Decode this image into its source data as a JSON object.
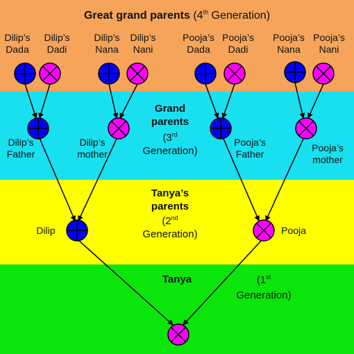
{
  "bands": {
    "gen4": {
      "title_bold": "Great grand parents",
      "open": "(4",
      "sup": "th",
      "rest": " Generation)",
      "color": "#f5a45a"
    },
    "gen3": {
      "line1": "Grand",
      "line2": "parents",
      "open": "(3",
      "sup": "rd",
      "line4": "Generation)",
      "color": "#18e0f0"
    },
    "gen2": {
      "line1": "Tanya’s",
      "line2": "parents",
      "open": "(2",
      "sup": "nd",
      "line4": "Generation)",
      "color": "#ffff00"
    },
    "gen1": {
      "name": "Tanya",
      "open": "(1",
      "sup": "st",
      "line2": "Generation)",
      "color": "#0ae60a"
    }
  },
  "colors": {
    "male": "#0000ff",
    "female": "#ff00ff"
  },
  "labels": {
    "dilips_dada": [
      "Dilip’s",
      "Dada"
    ],
    "dilips_dadi": [
      "Dilip’s",
      "Dadi"
    ],
    "dilips_nana": [
      "Dilip’s",
      "Nana"
    ],
    "dilips_nani": [
      "Dilip’s",
      "Nani"
    ],
    "poojas_dada": [
      "Pooja’s",
      "Dada"
    ],
    "poojas_dadi": [
      "Pooja’s",
      "Dadi"
    ],
    "poojas_nana": [
      "Pooja’s",
      "Nana"
    ],
    "poojas_nani": [
      "Pooja’s",
      "Nani"
    ],
    "dilips_father": [
      "Dilip’s",
      "Father"
    ],
    "dilips_mother": [
      "Dilip’s",
      "mother"
    ],
    "poojas_father": [
      "Pooja’s",
      "Father"
    ],
    "poojas_mother": [
      "Pooja’s",
      "mother"
    ],
    "dilip": "Dilip",
    "pooja": "Pooja"
  }
}
